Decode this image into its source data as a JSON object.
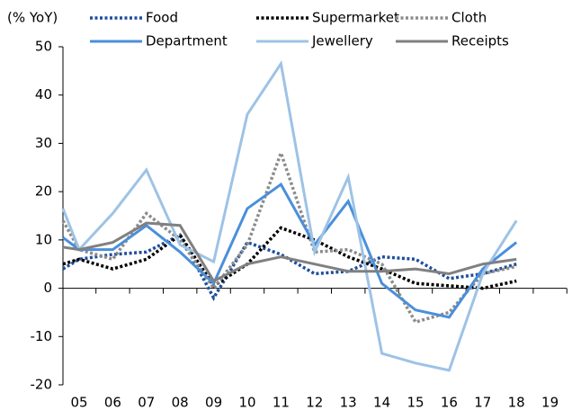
{
  "chart_data": {
    "type": "line",
    "y_label": "(% YoY)",
    "categories": [
      null,
      "05",
      "06",
      "07",
      "08",
      "09",
      "10",
      "11",
      "12",
      "13",
      "14",
      "15",
      "16",
      "17",
      "18",
      "19"
    ],
    "ylim": [
      -20,
      50
    ],
    "yticks": [
      -20,
      -10,
      0,
      10,
      20,
      30,
      40,
      50
    ],
    "series": [
      {
        "name": "Food",
        "color": "#1f4e9c",
        "dash": "dotted",
        "values": [
          4,
          6,
          7,
          7.5,
          11,
          -2,
          9.5,
          7,
          3,
          3.5,
          6.5,
          6,
          2,
          3,
          5,
          null
        ]
      },
      {
        "name": "Supermarket",
        "color": "#000000",
        "dash": "dotted",
        "values": [
          5,
          6,
          4,
          6,
          11,
          0.5,
          5,
          12.5,
          10,
          6.5,
          4,
          1,
          0.5,
          0,
          1.5,
          null
        ]
      },
      {
        "name": "Cloth",
        "color": "#8c8c8c",
        "dash": "dotted",
        "values": [
          14,
          8,
          6,
          15.5,
          10,
          0,
          9,
          28,
          7.5,
          8,
          5,
          -7,
          -5,
          3,
          4.5,
          null
        ]
      },
      {
        "name": "Department",
        "color": "#4a8fdb",
        "dash": "solid",
        "values": [
          10.5,
          8,
          8,
          13,
          7.5,
          1,
          16.5,
          21.5,
          9,
          18,
          1,
          -4.5,
          -6,
          4,
          9.5,
          null
        ]
      },
      {
        "name": "Jewellery",
        "color": "#9dc3e6",
        "dash": "solid",
        "values": [
          16.5,
          8,
          15.5,
          24.5,
          9,
          5.5,
          36,
          46.5,
          7.5,
          23,
          -13.5,
          -15.5,
          -17,
          3,
          14,
          null
        ]
      },
      {
        "name": "Receipts",
        "color": "#808080",
        "dash": "solid",
        "values": [
          8.5,
          8,
          9.5,
          13.5,
          13,
          1.5,
          5,
          6.5,
          5,
          3.5,
          3.5,
          4,
          3,
          5,
          6,
          null
        ]
      }
    ]
  }
}
